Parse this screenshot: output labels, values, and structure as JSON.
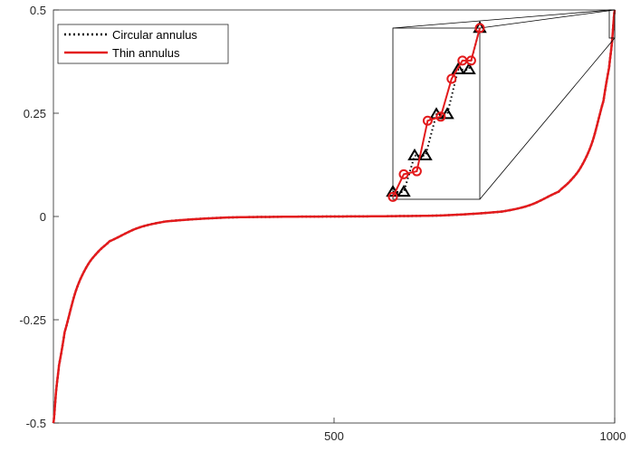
{
  "chart_data": {
    "type": "line",
    "title": "",
    "xlabel": "",
    "ylabel": "",
    "xlim": [
      0,
      1000
    ],
    "ylim": [
      -0.5,
      0.5
    ],
    "x_ticks": [
      500,
      1000
    ],
    "x_tick_labels": [
      "500",
      "1000"
    ],
    "y_ticks": [
      0.5,
      0.25,
      0,
      -0.25,
      -0.5
    ],
    "y_tick_labels": [
      "0.5",
      "0.25",
      "0",
      "-0.25",
      "-0.5"
    ],
    "grid": false,
    "legend_placement": "top-left",
    "series": [
      {
        "name": "Circular annulus",
        "style": "dotted",
        "color": "#000000",
        "curve_x": [
          0,
          5,
          10,
          20,
          40,
          60,
          80,
          100,
          150,
          200,
          300,
          400,
          500,
          600,
          700,
          800,
          850,
          900,
          920,
          940,
          960,
          980,
          990,
          995,
          1000
        ],
        "curve_y": [
          -0.5,
          -0.42,
          -0.36,
          -0.28,
          -0.18,
          -0.12,
          -0.085,
          -0.06,
          -0.028,
          -0.012,
          -0.003,
          -0.0008,
          0,
          0.0008,
          0.003,
          0.012,
          0.028,
          0.06,
          0.085,
          0.12,
          0.18,
          0.28,
          0.36,
          0.42,
          0.5
        ]
      },
      {
        "name": "Thin annulus",
        "style": "solid",
        "color": "#e31a1c",
        "curve_x": [
          0,
          5,
          10,
          20,
          40,
          60,
          80,
          100,
          150,
          200,
          300,
          400,
          500,
          600,
          700,
          800,
          850,
          900,
          920,
          940,
          960,
          980,
          990,
          995,
          1000
        ],
        "curve_y": [
          -0.5,
          -0.42,
          -0.36,
          -0.28,
          -0.18,
          -0.12,
          -0.085,
          -0.06,
          -0.028,
          -0.012,
          -0.003,
          -0.0008,
          0,
          0.0008,
          0.003,
          0.012,
          0.028,
          0.06,
          0.085,
          0.12,
          0.18,
          0.28,
          0.36,
          0.42,
          0.5
        ]
      }
    ],
    "inset": {
      "source_x_range": [
        992,
        1000
      ],
      "source_y_range": [
        0.42,
        0.5
      ],
      "series": [
        {
          "name": "Circular annulus",
          "marker": "triangle",
          "color": "#000000",
          "x": [
            992.0,
            992.5,
            993,
            993.5,
            994,
            994.5,
            995,
            995.5,
            996
          ],
          "y": [
            0.4234,
            0.4234,
            0.4404,
            0.4404,
            0.4597,
            0.4597,
            0.4806,
            0.4806,
            0.5
          ]
        },
        {
          "name": "Thin annulus",
          "marker": "circle",
          "color": "#e31a1c",
          "x": [
            992.0,
            992.5,
            993.1,
            993.6,
            994.2,
            994.7,
            995.2,
            995.6,
            996
          ],
          "y": [
            0.4211,
            0.4317,
            0.4331,
            0.4567,
            0.4586,
            0.4763,
            0.4848,
            0.4848,
            0.5
          ]
        }
      ]
    }
  }
}
